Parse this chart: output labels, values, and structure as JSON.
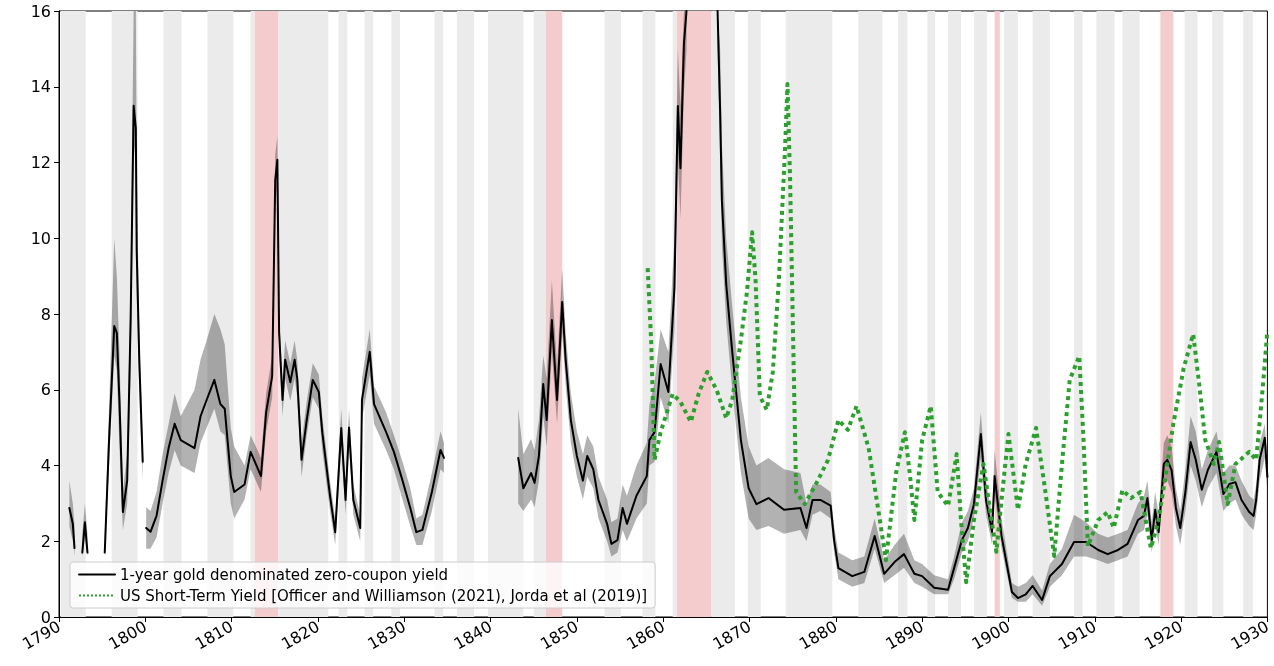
{
  "chart_data": {
    "type": "line",
    "xlim": [
      1790,
      1930
    ],
    "xticks": [
      1790,
      1800,
      1810,
      1820,
      1830,
      1840,
      1850,
      1860,
      1870,
      1880,
      1890,
      1900,
      1910,
      1920,
      1930
    ],
    "ylim": [
      0,
      16
    ],
    "yticks": [
      0,
      2,
      4,
      6,
      8,
      10,
      12,
      14,
      16
    ],
    "grid": false,
    "legend": "bottom left",
    "marker": "none",
    "series": [
      {
        "name": "1-year gold denominated zero-coupon yield",
        "color": "#000000",
        "line_style": "solid",
        "x": [
          1791.2,
          1791.6,
          1791.8,
          1792.2,
          1792.7,
          1793.0,
          1793.3,
          1794.5,
          1795.3,
          1795.8,
          1796.4,
          1796.7,
          1797.0,
          1797.4,
          1797.9,
          1798.3,
          1798.65,
          1798.9,
          1799.0,
          1799.3,
          1799.7,
          1799.9,
          1800.1,
          1800.6,
          1801.3,
          1802.0,
          1802.7,
          1803.4,
          1804.1,
          1805.7,
          1806.4,
          1807.1,
          1808.0,
          1808.7,
          1809.2,
          1809.9,
          1810.3,
          1811.5,
          1812.2,
          1813.4,
          1814.0,
          1814.7,
          1815.05,
          1815.3,
          1815.5,
          1815.9,
          1816.2,
          1816.8,
          1817.3,
          1817.6,
          1818.1,
          1818.7,
          1819.4,
          1820.1,
          1820.5,
          1821.4,
          1822.0,
          1822.7,
          1823.2,
          1823.6,
          1824.1,
          1824.9,
          1825.1,
          1826.0,
          1826.5,
          1827.9,
          1828.8,
          1829.8,
          1830.7,
          1831.4,
          1832.1,
          1833.2,
          1834.2,
          1834.6,
          1838.0,
          1843.2,
          1843.8,
          1844.7,
          1845.1,
          1845.6,
          1846.1,
          1846.5,
          1847.1,
          1847.7,
          1848.3,
          1848.7,
          1849.3,
          1850.0,
          1850.7,
          1851.2,
          1851.9,
          1852.5,
          1853.5,
          1854.0,
          1854.7,
          1855.3,
          1855.8,
          1856.9,
          1858.1,
          1858.4,
          1859.0,
          1859.7,
          1860.6,
          1861.3,
          1861.7,
          1862.0,
          1862.4,
          1862.7,
          1864.0,
          1866.3,
          1866.6,
          1866.8,
          1867.3,
          1868.0,
          1869.0,
          1869.9,
          1870.8,
          1872.2,
          1874.0,
          1875.9,
          1876.6,
          1877.3,
          1878.2,
          1879.4,
          1879.8,
          1880.3,
          1881.9,
          1883.3,
          1884.5,
          1885.6,
          1886.8,
          1887.9,
          1889.1,
          1890.0,
          1891.4,
          1893.0,
          1893.7,
          1894.6,
          1895.3,
          1896.0,
          1896.8,
          1897.4,
          1898.1,
          1898.4,
          1899.2,
          1900.4,
          1901.1,
          1902.0,
          1902.8,
          1903.9,
          1904.8,
          1906.2,
          1907.6,
          1909.0,
          1910.4,
          1911.5,
          1912.7,
          1913.8,
          1915.0,
          1915.7,
          1916.1,
          1916.6,
          1917.0,
          1917.4,
          1918.0,
          1918.4,
          1918.9,
          1919.4,
          1919.9,
          1920.5,
          1921.1,
          1921.7,
          1922.4,
          1923.1,
          1924.1,
          1924.9,
          1925.6,
          1926.3,
          1927.0,
          1927.9,
          1928.4,
          1928.7,
          1929.1,
          1929.7,
          1930.0
        ],
        "values": [
          2.88,
          2.46,
          1.82,
          null,
          1.7,
          2.5,
          1.7,
          null,
          1.7,
          4.67,
          7.68,
          7.5,
          5.73,
          2.77,
          3.6,
          7.84,
          13.5,
          12.9,
          9.7,
          6.8,
          4.1,
          null,
          2.35,
          2.25,
          2.67,
          3.6,
          4.46,
          5.1,
          4.67,
          4.46,
          5.3,
          5.73,
          6.26,
          5.62,
          5.5,
          3.72,
          3.3,
          3.5,
          4.36,
          3.72,
          5.41,
          6.36,
          11.54,
          12.07,
          7.52,
          5.73,
          6.79,
          6.2,
          6.79,
          6.3,
          4.15,
          5.2,
          6.26,
          5.94,
          4.88,
          3.2,
          2.24,
          4.99,
          3.09,
          5.0,
          3.09,
          2.35,
          5.73,
          7.0,
          5.62,
          4.88,
          4.36,
          3.6,
          2.88,
          2.24,
          2.3,
          3.3,
          4.41,
          4.2,
          null,
          4.2,
          3.4,
          3.8,
          3.54,
          4.25,
          6.15,
          5.2,
          7.84,
          5.73,
          8.32,
          6.79,
          5.2,
          4.25,
          3.6,
          4.25,
          3.9,
          3.09,
          2.46,
          1.93,
          2.03,
          2.88,
          2.46,
          3.2,
          3.72,
          4.67,
          4.88,
          6.68,
          5.94,
          8.69,
          13.49,
          11.85,
          15.13,
          16,
          null,
          16,
          13.3,
          11.0,
          8.79,
          7.0,
          4.67,
          3.4,
          2.98,
          3.14,
          2.83,
          2.88,
          2.35,
          3.09,
          3.09,
          2.94,
          2.03,
          1.29,
          1.08,
          1.19,
          2.14,
          1.14,
          1.45,
          1.66,
          1.14,
          1.08,
          0.77,
          0.72,
          1.29,
          2.03,
          2.35,
          2.98,
          4.83,
          3.09,
          2.24,
          3.72,
          2.14,
          0.66,
          0.5,
          0.6,
          0.82,
          0.45,
          1.08,
          1.4,
          1.98,
          1.98,
          1.77,
          1.66,
          1.77,
          1.93,
          2.56,
          2.67,
          3.14,
          2.03,
          2.83,
          2.24,
          4.04,
          4.15,
          3.88,
          2.88,
          2.35,
          3.3,
          4.62,
          4.15,
          3.36,
          3.88,
          4.36,
          3.25,
          3.51,
          3.56,
          3.09,
          2.77,
          2.67,
          3.09,
          4.15,
          4.73,
          3.7
        ],
        "lower": [
          2.4,
          2.0,
          1.6,
          null,
          1.6,
          2.1,
          1.6,
          null,
          1.6,
          4.0,
          6.9,
          6.5,
          4.5,
          2.3,
          3.0,
          6.5,
          12.5,
          12.0,
          8.5,
          5.8,
          3.6,
          null,
          1.8,
          1.8,
          2.1,
          3.0,
          3.8,
          4.4,
          4.0,
          3.8,
          4.6,
          5.0,
          5.5,
          4.9,
          4.8,
          3.0,
          2.6,
          3.1,
          3.9,
          3.3,
          4.9,
          5.8,
          10.9,
          11.4,
          7.0,
          5.3,
          6.3,
          5.7,
          6.3,
          5.8,
          3.7,
          4.8,
          5.8,
          5.5,
          4.4,
          2.8,
          1.9,
          4.5,
          2.7,
          4.5,
          2.7,
          2.0,
          5.2,
          6.4,
          5.1,
          4.4,
          3.9,
          3.1,
          2.4,
          1.9,
          1.9,
          2.8,
          3.9,
          3.8,
          null,
          3.0,
          2.8,
          3.1,
          2.9,
          3.6,
          5.3,
          4.5,
          7.0,
          5.1,
          7.5,
          6.1,
          4.6,
          3.7,
          3.1,
          3.7,
          3.4,
          2.6,
          2.0,
          1.6,
          1.7,
          2.3,
          2.0,
          2.6,
          3.0,
          4.0,
          4.1,
          5.8,
          5.1,
          7.6,
          12.2,
          10.5,
          13.8,
          15,
          null,
          15,
          12.0,
          9.8,
          7.8,
          6.0,
          3.8,
          2.6,
          2.3,
          2.4,
          2.2,
          2.3,
          2.0,
          2.7,
          2.8,
          2.6,
          1.7,
          1.0,
          0.8,
          0.9,
          1.8,
          0.9,
          1.1,
          1.3,
          0.9,
          0.8,
          0.6,
          0.6,
          1.0,
          1.7,
          2.0,
          2.6,
          4.2,
          2.7,
          1.9,
          3.2,
          1.8,
          0.5,
          0.4,
          0.4,
          0.6,
          0.3,
          0.8,
          1.1,
          1.6,
          1.6,
          1.5,
          1.4,
          1.5,
          1.6,
          2.2,
          2.3,
          2.7,
          1.7,
          2.4,
          1.9,
          3.5,
          3.6,
          3.3,
          2.4,
          1.9,
          2.8,
          4.0,
          3.6,
          2.9,
          3.4,
          3.8,
          2.8,
          3.0,
          3.1,
          2.7,
          2.4,
          2.3,
          2.7,
          3.6,
          4.2,
          3.3
        ],
        "upper": [
          3.6,
          3.0,
          2.4,
          null,
          2.2,
          3.0,
          2.2,
          null,
          2.2,
          5.5,
          10.0,
          9.0,
          7.0,
          3.3,
          4.3,
          9.0,
          16,
          16,
          12.0,
          7.5,
          4.6,
          null,
          2.9,
          2.8,
          3.3,
          4.3,
          5.1,
          5.9,
          5.3,
          6.0,
          6.8,
          7.3,
          8.0,
          7.6,
          7.2,
          5.0,
          4.5,
          4.0,
          4.8,
          4.2,
          5.9,
          6.9,
          12.2,
          12.7,
          8.0,
          6.2,
          7.3,
          6.7,
          7.3,
          6.8,
          4.6,
          5.7,
          6.7,
          6.4,
          5.3,
          3.6,
          2.6,
          5.5,
          3.5,
          5.5,
          3.5,
          2.7,
          6.3,
          7.6,
          6.1,
          5.4,
          4.8,
          4.1,
          3.4,
          2.6,
          2.7,
          3.8,
          4.9,
          4.6,
          null,
          5.5,
          4.3,
          4.7,
          4.4,
          5.2,
          6.9,
          6.3,
          8.9,
          6.6,
          9.2,
          7.5,
          5.9,
          4.9,
          4.3,
          4.8,
          4.5,
          3.7,
          3.1,
          2.5,
          2.6,
          3.5,
          3.2,
          4.0,
          4.6,
          5.6,
          6.2,
          7.6,
          7.0,
          10.0,
          15.0,
          13.5,
          16,
          16,
          null,
          16,
          15.0,
          12.5,
          10.0,
          8.2,
          5.8,
          4.5,
          4.0,
          4.2,
          3.9,
          3.8,
          3.0,
          3.5,
          3.5,
          3.3,
          2.4,
          1.7,
          1.5,
          1.6,
          2.6,
          1.5,
          1.9,
          2.2,
          1.5,
          1.4,
          1.1,
          1.0,
          1.6,
          2.5,
          2.8,
          3.4,
          5.4,
          3.6,
          2.7,
          4.4,
          2.6,
          0.9,
          0.8,
          0.9,
          1.1,
          0.7,
          1.4,
          1.8,
          2.7,
          2.5,
          2.2,
          2.1,
          2.2,
          2.3,
          3.0,
          3.2,
          3.6,
          2.5,
          3.3,
          2.7,
          4.6,
          4.8,
          4.5,
          3.4,
          2.8,
          3.9,
          5.3,
          4.9,
          3.9,
          4.4,
          4.9,
          3.8,
          4.0,
          4.0,
          3.6,
          3.2,
          3.1,
          3.5,
          4.6,
          5.1,
          4.1
        ]
      },
      {
        "name": "US Short-Term Yield [Officer and Williamson (2021), Jorda et al (2019)]",
        "color": "#2ca02c",
        "line_style": "dotted",
        "x": [
          1858.2,
          1858.6,
          1858.8,
          1859.0,
          1859.7,
          1861.1,
          1862.0,
          1863.2,
          1864.1,
          1865.1,
          1866.2,
          1867.3,
          1868.0,
          1869.0,
          1869.7,
          1870.3,
          1870.7,
          1871.2,
          1872.0,
          1872.7,
          1873.4,
          1874.1,
          1874.4,
          1874.7,
          1875.1,
          1875.4,
          1876.4,
          1877.7,
          1879.1,
          1880.3,
          1881.4,
          1882.4,
          1883.8,
          1885.1,
          1885.8,
          1887.0,
          1888.0,
          1888.6,
          1889.1,
          1890.0,
          1891.0,
          1891.8,
          1893.0,
          1894.0,
          1894.5,
          1895.1,
          1896.0,
          1897.1,
          1897.9,
          1898.6,
          1899.2,
          1900.0,
          1901.1,
          1902.0,
          1903.2,
          1904.1,
          1905.3,
          1906.2,
          1907.1,
          1908.2,
          1908.7,
          1909.2,
          1910.4,
          1911.5,
          1912.2,
          1913.2,
          1914.2,
          1915.3,
          1915.9,
          1916.5,
          1917.3,
          1918.2,
          1919.1,
          1920.3,
          1921.4,
          1922.1,
          1922.8,
          1923.8,
          1924.4,
          1925.4,
          1926.3,
          1927.9,
          1928.7,
          1929.5,
          1930.0
        ],
        "values": [
          9.21,
          7.31,
          5.73,
          4.15,
          4.88,
          5.89,
          5.68,
          5.15,
          5.89,
          6.47,
          5.99,
          5.25,
          5.73,
          7.31,
          8.58,
          10.16,
          8.9,
          5.83,
          5.47,
          6.47,
          8.9,
          12.28,
          14.07,
          11.54,
          6.79,
          3.3,
          2.98,
          3.51,
          4.15,
          5.2,
          4.94,
          5.57,
          4.46,
          2.56,
          1.5,
          3.83,
          4.88,
          3.72,
          2.56,
          4.67,
          5.57,
          3.3,
          2.93,
          4.3,
          2.56,
          0.92,
          2.56,
          4.04,
          2.77,
          1.72,
          3.09,
          4.83,
          2.83,
          4.04,
          4.99,
          3.6,
          1.61,
          4.04,
          6.26,
          6.89,
          4.67,
          1.87,
          2.56,
          2.77,
          2.35,
          3.35,
          3.14,
          3.3,
          2.56,
          1.82,
          2.46,
          3.72,
          5.1,
          6.57,
          7.47,
          6.15,
          4.67,
          4.04,
          4.62,
          2.98,
          4.04,
          4.36,
          4.15,
          6.15,
          7.57
        ]
      }
    ],
    "bands": [
      {
        "axis": "x",
        "from": 1790.2,
        "to": 1793.1,
        "color": "#ebebeb"
      },
      {
        "axis": "x",
        "from": 1796.1,
        "to": 1799.1,
        "color": "#ebebeb"
      },
      {
        "axis": "x",
        "from": 1802.1,
        "to": 1804.2,
        "color": "#ebebeb"
      },
      {
        "axis": "x",
        "from": 1807.2,
        "to": 1810.2,
        "color": "#ebebeb"
      },
      {
        "axis": "x",
        "from": 1812.2,
        "to": 1812.7,
        "color": "#ebebeb"
      },
      {
        "axis": "x",
        "from": 1812.7,
        "to": 1815.4,
        "color": "#f4ccce"
      },
      {
        "axis": "x",
        "from": 1815.4,
        "to": 1821.2,
        "color": "#ebebeb"
      },
      {
        "axis": "x",
        "from": 1822.4,
        "to": 1823.4,
        "color": "#ebebeb"
      },
      {
        "axis": "x",
        "from": 1825.4,
        "to": 1826.4,
        "color": "#ebebeb"
      },
      {
        "axis": "x",
        "from": 1828.5,
        "to": 1829.5,
        "color": "#ebebeb"
      },
      {
        "axis": "x",
        "from": 1833.5,
        "to": 1834.5,
        "color": "#ebebeb"
      },
      {
        "axis": "x",
        "from": 1836.1,
        "to": 1838.1,
        "color": "#ebebeb"
      },
      {
        "axis": "x",
        "from": 1839.7,
        "to": 1843.8,
        "color": "#ebebeb"
      },
      {
        "axis": "x",
        "from": 1845.0,
        "to": 1846.4,
        "color": "#ebebeb"
      },
      {
        "axis": "x",
        "from": 1846.4,
        "to": 1848.3,
        "color": "#f4ccce"
      },
      {
        "axis": "x",
        "from": 1853.2,
        "to": 1855.1,
        "color": "#ebebeb"
      },
      {
        "axis": "x",
        "from": 1857.6,
        "to": 1859.1,
        "color": "#ebebeb"
      },
      {
        "axis": "x",
        "from": 1861.1,
        "to": 1861.6,
        "color": "#ebebeb"
      },
      {
        "axis": "x",
        "from": 1861.6,
        "to": 1865.6,
        "color": "#f4ccce"
      },
      {
        "axis": "x",
        "from": 1865.6,
        "to": 1868.3,
        "color": "#ebebeb"
      },
      {
        "axis": "x",
        "from": 1869.8,
        "to": 1871.3,
        "color": "#ebebeb"
      },
      {
        "axis": "x",
        "from": 1874.2,
        "to": 1879.6,
        "color": "#ebebeb"
      },
      {
        "axis": "x",
        "from": 1882.6,
        "to": 1885.4,
        "color": "#ebebeb"
      },
      {
        "axis": "x",
        "from": 1887.2,
        "to": 1888.3,
        "color": "#ebebeb"
      },
      {
        "axis": "x",
        "from": 1890.6,
        "to": 1891.5,
        "color": "#ebebeb"
      },
      {
        "axis": "x",
        "from": 1893.0,
        "to": 1894.5,
        "color": "#ebebeb"
      },
      {
        "axis": "x",
        "from": 1896.0,
        "to": 1897.5,
        "color": "#ebebeb"
      },
      {
        "axis": "x",
        "from": 1898.4,
        "to": 1899.0,
        "color": "#f4ccce"
      },
      {
        "axis": "x",
        "from": 1899.5,
        "to": 1901.1,
        "color": "#ebebeb"
      },
      {
        "axis": "x",
        "from": 1902.8,
        "to": 1904.8,
        "color": "#ebebeb"
      },
      {
        "axis": "x",
        "from": 1907.6,
        "to": 1908.6,
        "color": "#ebebeb"
      },
      {
        "axis": "x",
        "from": 1910.2,
        "to": 1912.3,
        "color": "#ebebeb"
      },
      {
        "axis": "x",
        "from": 1913.2,
        "to": 1915.2,
        "color": "#ebebeb"
      },
      {
        "axis": "x",
        "from": 1917.6,
        "to": 1919.1,
        "color": "#f4ccce"
      },
      {
        "axis": "x",
        "from": 1920.4,
        "to": 1921.9,
        "color": "#ebebeb"
      },
      {
        "axis": "x",
        "from": 1923.6,
        "to": 1924.9,
        "color": "#ebebeb"
      },
      {
        "axis": "x",
        "from": 1927.2,
        "to": 1928.3,
        "color": "#ebebeb"
      }
    ]
  }
}
